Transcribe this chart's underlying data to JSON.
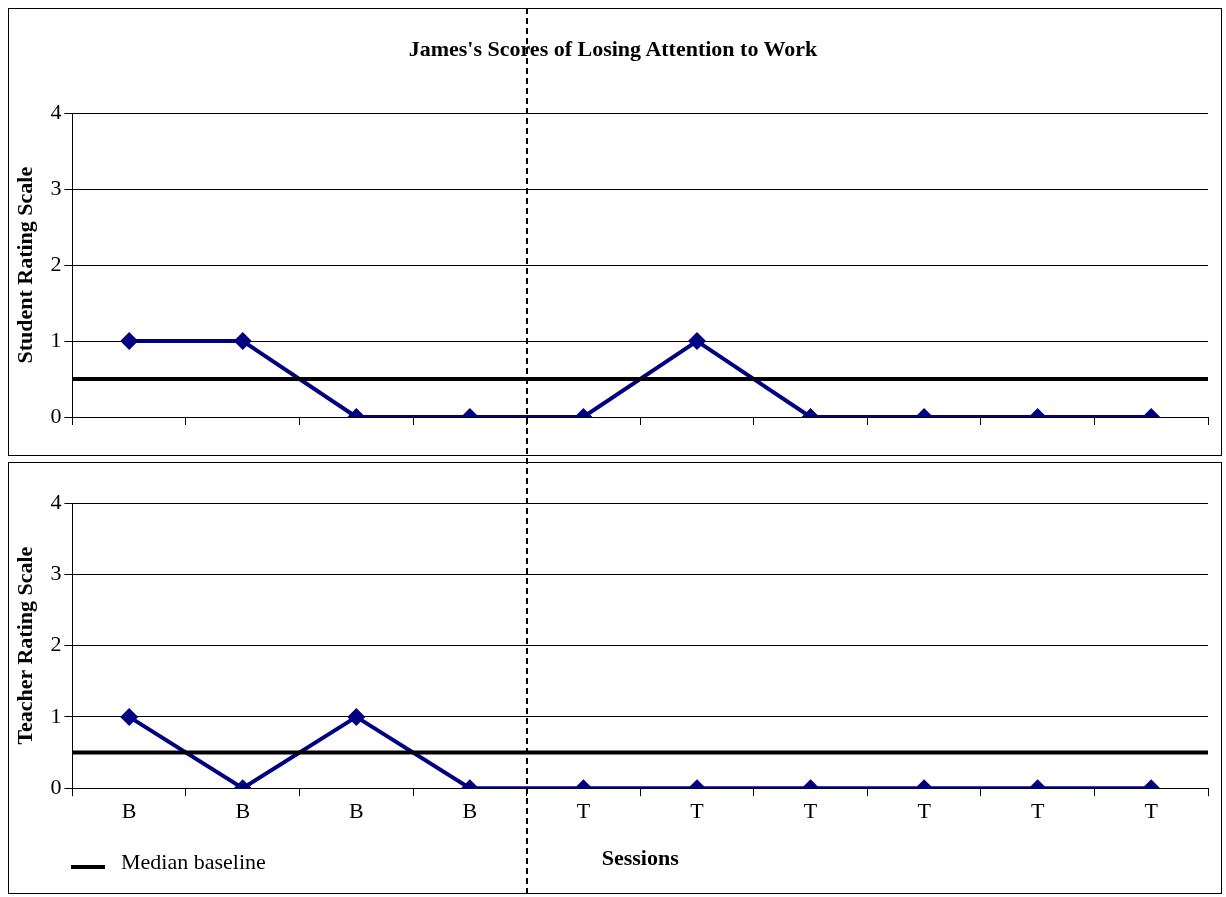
{
  "chart_data": [
    {
      "type": "line",
      "title": "James's Scores of Losing Attention to Work",
      "ylabel": "Student Rating Scale",
      "categories": [
        null,
        null,
        null,
        null,
        null,
        null,
        null,
        null,
        null,
        null
      ],
      "series": [
        {
          "color": "#000080",
          "values": [
            1,
            1,
            0,
            0,
            0,
            1,
            0,
            0,
            0,
            0
          ]
        }
      ],
      "ylim": [
        0,
        4
      ],
      "yticks": [
        0,
        1,
        2,
        3,
        4
      ],
      "grid": "y",
      "marker": "diamond",
      "line_style": "solid",
      "tick_labels": "y",
      "ref_lines": [
        {
          "axis": "y",
          "value": 0.5,
          "color": "#000000"
        }
      ]
    },
    {
      "type": "line",
      "ylabel": "Teacher Rating Scale",
      "xlabel": "Sessions",
      "categories": [
        "B",
        "B",
        "B",
        "B",
        "T",
        "T",
        "T",
        "T",
        "T",
        "T"
      ],
      "series": [
        {
          "color": "#000080",
          "values": [
            1,
            0,
            1,
            0,
            0,
            0,
            0,
            0,
            0,
            0
          ]
        }
      ],
      "ylim": [
        0,
        4
      ],
      "yticks": [
        0,
        1,
        2,
        3,
        4
      ],
      "grid": "y",
      "marker": "diamond",
      "line_style": "solid",
      "legend": "bottom left",
      "ref_lines": [
        {
          "axis": "y",
          "value": 0.5,
          "label": "Median baseline",
          "color": "#000000"
        }
      ]
    }
  ]
}
